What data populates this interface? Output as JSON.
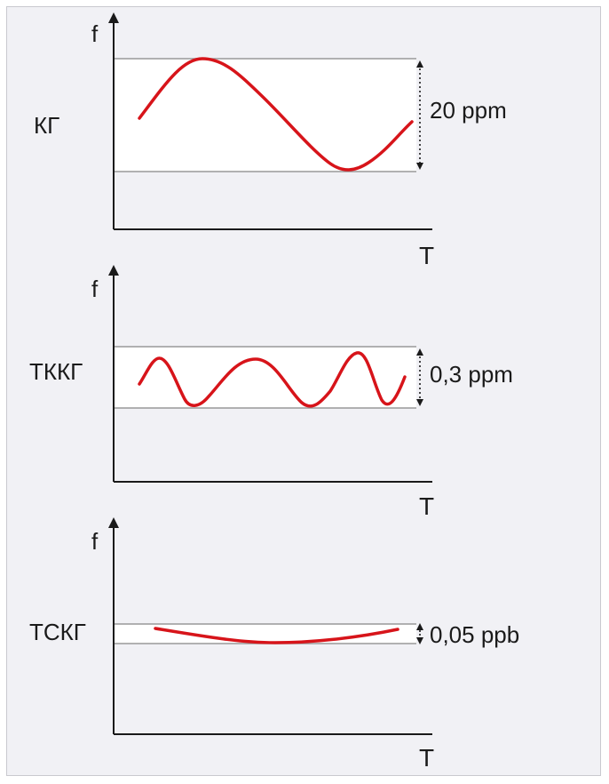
{
  "colors": {
    "curve": "#d7141a",
    "band": "#ffffff",
    "frame_bg": "#f1f1f5",
    "axis": "#1a1a1a",
    "limit": "#999999"
  },
  "panels": [
    {
      "name": "КГ",
      "y_axis_label": "f",
      "x_axis_label": "T",
      "range_label": "20 ppm",
      "curve_type": "single-wave",
      "icon": "dotted-double-arrow"
    },
    {
      "name": "ТККГ",
      "y_axis_label": "f",
      "x_axis_label": "T",
      "range_label": "0,3 ppm",
      "curve_type": "multi-wave",
      "icon": "dotted-double-arrow"
    },
    {
      "name": "ТСКГ",
      "y_axis_label": "f",
      "x_axis_label": "T",
      "range_label": "0,05 ppb",
      "curve_type": "shallow-parabola",
      "icon": "dotted-double-arrow"
    }
  ]
}
